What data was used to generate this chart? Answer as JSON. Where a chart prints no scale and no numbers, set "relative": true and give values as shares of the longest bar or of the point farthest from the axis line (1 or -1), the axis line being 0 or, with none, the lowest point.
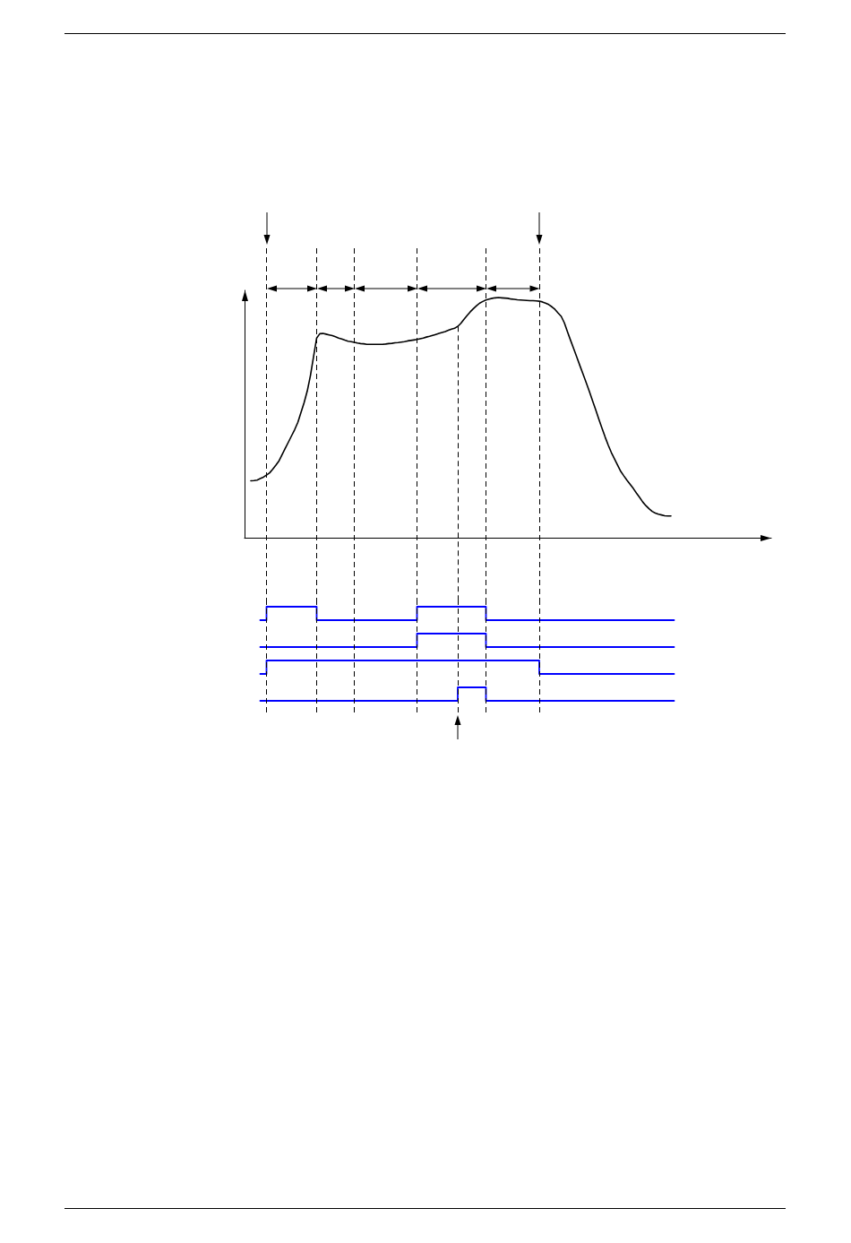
{
  "chart_data": [
    {
      "type": "line",
      "relative": true,
      "tick_labels": false,
      "categories": [
        null,
        null,
        null,
        null,
        null,
        null,
        null,
        null,
        null,
        null,
        null,
        null,
        null,
        null,
        null,
        null,
        null,
        null,
        null,
        null,
        null,
        null,
        null,
        null,
        null,
        null,
        null,
        null,
        null,
        null,
        null,
        null,
        null,
        null,
        null,
        null,
        null,
        null,
        null,
        null,
        null,
        null,
        null,
        null,
        null,
        null,
        null,
        null,
        null,
        null,
        null,
        null,
        null,
        null,
        null,
        null,
        null,
        null,
        null,
        null,
        null,
        null,
        null,
        null,
        null,
        null,
        null,
        null,
        null,
        null,
        null,
        null,
        null,
        null,
        null,
        null,
        null,
        null,
        null,
        null,
        null,
        null,
        null,
        null,
        null,
        null,
        null,
        null,
        null,
        null,
        null,
        null,
        null,
        null,
        null,
        null,
        null,
        null,
        null,
        null,
        null,
        null,
        null,
        null,
        null,
        null,
        null,
        null,
        null,
        null,
        null,
        null,
        null,
        null,
        null,
        null,
        null,
        null,
        null,
        null,
        null,
        null,
        null,
        null,
        null,
        null,
        null,
        null,
        null,
        null,
        null,
        null,
        null,
        null,
        null,
        null,
        null,
        null,
        null,
        null,
        null,
        null,
        null,
        null,
        null,
        null,
        null,
        null,
        null,
        null,
        null,
        null,
        null,
        null,
        null,
        null,
        null,
        null,
        null,
        null,
        null,
        null,
        null,
        null,
        null,
        null,
        null,
        null,
        null
      ],
      "color": "#000000",
      "values": [
        null,
        null,
        0.239,
        0.24,
        0.242,
        0.248,
        0.254,
        0.263,
        0.272,
        0.287,
        0.304,
        0.322,
        0.348,
        0.374,
        0.4,
        0.426,
        0.452,
        0.482,
        0.523,
        0.564,
        0.612,
        0.675,
        0.754,
        0.832,
        0.85,
        0.851,
        0.848,
        0.845,
        0.842,
        0.837,
        0.832,
        0.828,
        0.823,
        0.819,
        0.817,
        0.814,
        0.811,
        0.809,
        0.808,
        0.806,
        0.806,
        0.806,
        0.806,
        0.806,
        0.806,
        0.807,
        0.809,
        0.81,
        0.812,
        0.813,
        0.815,
        0.817,
        0.82,
        0.822,
        0.824,
        0.826,
        0.829,
        0.832,
        0.836,
        0.839,
        0.843,
        0.847,
        0.851,
        0.855,
        0.859,
        0.864,
        0.869,
        0.873,
        0.88,
        0.893,
        0.91,
        0.926,
        0.941,
        0.954,
        0.966,
        0.977,
        0.984,
        0.99,
        0.994,
        0.997,
        0.999,
        1,
        0.999,
        0.998,
        0.997,
        0.994,
        0.993,
        0.991,
        0.99,
        0.989,
        0.988,
        0.987,
        0.987,
        0.986,
        0.985,
        0.982,
        0.977,
        0.971,
        0.962,
        0.951,
        0.936,
        0.922,
        0.895,
        0.858,
        0.822,
        0.787,
        0.752,
        0.716,
        0.681,
        0.646,
        0.609,
        0.571,
        0.534,
        0.495,
        0.458,
        0.421,
        0.387,
        0.356,
        0.33,
        0.304,
        0.278,
        0.259,
        0.241,
        0.224,
        0.207,
        0.188,
        0.17,
        0.151,
        0.136,
        0.123,
        0.112,
        0.105,
        0.1,
        0.097,
        0.094,
        0.093,
        0.093,
        null,
        null,
        null,
        null,
        null,
        null,
        null,
        null,
        null,
        null,
        null,
        null,
        null,
        null,
        null,
        null,
        null,
        null,
        null,
        null,
        null,
        null,
        null,
        null,
        null,
        null,
        null,
        null,
        null,
        null,
        null,
        null
      ]
    },
    {
      "type": "step",
      "relative": true,
      "tick_labels": false,
      "categories": [
        null,
        null,
        null,
        null,
        null,
        null,
        null,
        null,
        null,
        null,
        null,
        null,
        null,
        null,
        null,
        null,
        null,
        null,
        null,
        null,
        null,
        null,
        null,
        null,
        null,
        null,
        null,
        null,
        null,
        null,
        null,
        null,
        null,
        null,
        null,
        null,
        null,
        null,
        null,
        null,
        null,
        null,
        null,
        null,
        null,
        null,
        null,
        null,
        null,
        null,
        null,
        null,
        null,
        null,
        null,
        null,
        null,
        null,
        null,
        null,
        null,
        null,
        null,
        null,
        null,
        null,
        null,
        null,
        null,
        null,
        null,
        null,
        null,
        null,
        null,
        null,
        null,
        null,
        null,
        null,
        null,
        null,
        null,
        null,
        null,
        null,
        null,
        null,
        null,
        null,
        null,
        null,
        null,
        null,
        null,
        null,
        null,
        null,
        null,
        null,
        null,
        null,
        null,
        null,
        null,
        null,
        null,
        null,
        null,
        null,
        null,
        null,
        null,
        null,
        null,
        null,
        null,
        null,
        null,
        null,
        null,
        null,
        null,
        null,
        null,
        null,
        null,
        null,
        null,
        null,
        null,
        null,
        null,
        null,
        null,
        null,
        null,
        null,
        null,
        null,
        null,
        null,
        null,
        null,
        null,
        null,
        null,
        null,
        null,
        null,
        null,
        null,
        null,
        null,
        null,
        null,
        null,
        null,
        null,
        null,
        null,
        null,
        null,
        null,
        null,
        null,
        null,
        null,
        null
      ],
      "color": "#0000ff",
      "values": [
        null,
        null,
        null,
        null,
        null,
        0,
        0,
        1,
        1,
        1,
        1,
        1,
        1,
        1,
        1,
        1,
        1,
        1,
        1,
        1,
        1,
        1,
        1,
        0,
        0,
        0,
        0,
        0,
        0,
        0,
        0,
        0,
        0,
        0,
        0,
        0,
        0,
        0,
        0,
        0,
        0,
        0,
        0,
        0,
        0,
        0,
        0,
        0,
        0,
        0,
        0,
        0,
        0,
        0,
        0,
        1,
        1,
        1,
        1,
        1,
        1,
        1,
        1,
        1,
        1,
        1,
        1,
        1,
        1,
        1,
        1,
        1,
        1,
        1,
        1,
        1,
        1,
        0,
        0,
        0,
        0,
        0,
        0,
        0,
        0,
        0,
        0,
        0,
        0,
        0,
        0,
        0,
        0,
        0,
        0,
        0,
        0,
        0,
        0,
        0,
        0,
        0,
        0,
        0,
        0,
        0,
        0,
        0,
        0,
        0,
        0,
        0,
        0,
        0,
        0,
        0,
        0,
        0,
        0,
        0,
        0,
        0,
        0,
        0,
        0,
        0,
        0,
        0,
        0,
        0,
        0,
        0,
        0,
        0,
        0,
        0,
        0,
        null,
        null,
        null,
        null,
        null,
        null,
        null,
        null,
        null,
        null,
        null,
        null,
        null,
        null,
        null,
        null,
        null,
        null,
        null,
        null,
        null,
        null,
        null,
        null,
        null,
        null,
        null,
        null,
        null,
        null,
        null,
        null
      ]
    },
    {
      "type": "step",
      "relative": true,
      "tick_labels": false,
      "categories": [
        null,
        null,
        null,
        null,
        null,
        null,
        null,
        null,
        null,
        null,
        null,
        null,
        null,
        null,
        null,
        null,
        null,
        null,
        null,
        null,
        null,
        null,
        null,
        null,
        null,
        null,
        null,
        null,
        null,
        null,
        null,
        null,
        null,
        null,
        null,
        null,
        null,
        null,
        null,
        null,
        null,
        null,
        null,
        null,
        null,
        null,
        null,
        null,
        null,
        null,
        null,
        null,
        null,
        null,
        null,
        null,
        null,
        null,
        null,
        null,
        null,
        null,
        null,
        null,
        null,
        null,
        null,
        null,
        null,
        null,
        null,
        null,
        null,
        null,
        null,
        null,
        null,
        null,
        null,
        null,
        null,
        null,
        null,
        null,
        null,
        null,
        null,
        null,
        null,
        null,
        null,
        null,
        null,
        null,
        null,
        null,
        null,
        null,
        null,
        null,
        null,
        null,
        null,
        null,
        null,
        null,
        null,
        null,
        null,
        null,
        null,
        null,
        null,
        null,
        null,
        null,
        null,
        null,
        null,
        null,
        null,
        null,
        null,
        null,
        null,
        null,
        null,
        null,
        null,
        null,
        null,
        null,
        null,
        null,
        null,
        null,
        null,
        null,
        null,
        null,
        null,
        null,
        null,
        null,
        null,
        null,
        null,
        null,
        null,
        null,
        null,
        null,
        null,
        null,
        null,
        null,
        null,
        null,
        null,
        null,
        null,
        null,
        null,
        null,
        null,
        null,
        null,
        null,
        null
      ],
      "color": "#0000ff",
      "values": [
        null,
        null,
        null,
        null,
        null,
        0,
        0,
        0,
        0,
        0,
        0,
        0,
        0,
        0,
        0,
        0,
        0,
        0,
        0,
        0,
        0,
        0,
        0,
        0,
        0,
        0,
        0,
        0,
        0,
        0,
        0,
        0,
        0,
        0,
        0,
        0,
        0,
        0,
        0,
        0,
        0,
        0,
        0,
        0,
        0,
        0,
        0,
        0,
        0,
        0,
        0,
        0,
        0,
        0,
        0,
        1,
        1,
        1,
        1,
        1,
        1,
        1,
        1,
        1,
        1,
        1,
        1,
        1,
        1,
        1,
        1,
        1,
        1,
        1,
        1,
        1,
        1,
        0,
        0,
        0,
        0,
        0,
        0,
        0,
        0,
        0,
        0,
        0,
        0,
        0,
        0,
        0,
        0,
        0,
        0,
        0,
        0,
        0,
        0,
        0,
        0,
        0,
        0,
        0,
        0,
        0,
        0,
        0,
        0,
        0,
        0,
        0,
        0,
        0,
        0,
        0,
        0,
        0,
        0,
        0,
        0,
        0,
        0,
        0,
        0,
        0,
        0,
        0,
        0,
        0,
        0,
        0,
        0,
        0,
        0,
        0,
        0,
        null,
        null,
        null,
        null,
        null,
        null,
        null,
        null,
        null,
        null,
        null,
        null,
        null,
        null,
        null,
        null,
        null,
        null,
        null,
        null,
        null,
        null,
        null,
        null,
        null,
        null,
        null,
        null,
        null,
        null,
        null,
        null
      ]
    },
    {
      "type": "step",
      "relative": true,
      "tick_labels": false,
      "categories": [
        null,
        null,
        null,
        null,
        null,
        null,
        null,
        null,
        null,
        null,
        null,
        null,
        null,
        null,
        null,
        null,
        null,
        null,
        null,
        null,
        null,
        null,
        null,
        null,
        null,
        null,
        null,
        null,
        null,
        null,
        null,
        null,
        null,
        null,
        null,
        null,
        null,
        null,
        null,
        null,
        null,
        null,
        null,
        null,
        null,
        null,
        null,
        null,
        null,
        null,
        null,
        null,
        null,
        null,
        null,
        null,
        null,
        null,
        null,
        null,
        null,
        null,
        null,
        null,
        null,
        null,
        null,
        null,
        null,
        null,
        null,
        null,
        null,
        null,
        null,
        null,
        null,
        null,
        null,
        null,
        null,
        null,
        null,
        null,
        null,
        null,
        null,
        null,
        null,
        null,
        null,
        null,
        null,
        null,
        null,
        null,
        null,
        null,
        null,
        null,
        null,
        null,
        null,
        null,
        null,
        null,
        null,
        null,
        null,
        null,
        null,
        null,
        null,
        null,
        null,
        null,
        null,
        null,
        null,
        null,
        null,
        null,
        null,
        null,
        null,
        null,
        null,
        null,
        null,
        null,
        null,
        null,
        null,
        null,
        null,
        null,
        null,
        null,
        null,
        null,
        null,
        null,
        null,
        null,
        null,
        null,
        null,
        null,
        null,
        null,
        null,
        null,
        null,
        null,
        null,
        null,
        null,
        null,
        null,
        null,
        null,
        null,
        null,
        null,
        null,
        null,
        null,
        null,
        null
      ],
      "color": "#0000ff",
      "values": [
        null,
        null,
        null,
        null,
        null,
        0,
        0,
        1,
        1,
        1,
        1,
        1,
        1,
        1,
        1,
        1,
        1,
        1,
        1,
        1,
        1,
        1,
        1,
        1,
        1,
        1,
        1,
        1,
        1,
        1,
        1,
        1,
        1,
        1,
        1,
        1,
        1,
        1,
        1,
        1,
        1,
        1,
        1,
        1,
        1,
        1,
        1,
        1,
        1,
        1,
        1,
        1,
        1,
        1,
        1,
        1,
        1,
        1,
        1,
        1,
        1,
        1,
        1,
        1,
        1,
        1,
        1,
        1,
        1,
        1,
        1,
        1,
        1,
        1,
        1,
        1,
        1,
        1,
        1,
        1,
        1,
        1,
        1,
        1,
        1,
        1,
        1,
        1,
        1,
        1,
        1,
        1,
        1,
        1,
        0,
        0,
        0,
        0,
        0,
        0,
        0,
        0,
        0,
        0,
        0,
        0,
        0,
        0,
        0,
        0,
        0,
        0,
        0,
        0,
        0,
        0,
        0,
        0,
        0,
        0,
        0,
        0,
        0,
        0,
        0,
        0,
        0,
        0,
        0,
        0,
        0,
        0,
        0,
        0,
        0,
        0,
        0,
        null,
        null,
        null,
        null,
        null,
        null,
        null,
        null,
        null,
        null,
        null,
        null,
        null,
        null,
        null,
        null,
        null,
        null,
        null,
        null,
        null,
        null,
        null,
        null,
        null,
        null,
        null,
        null,
        null,
        null,
        null,
        null
      ]
    },
    {
      "type": "step",
      "relative": true,
      "tick_labels": false,
      "categories": [
        null,
        null,
        null,
        null,
        null,
        null,
        null,
        null,
        null,
        null,
        null,
        null,
        null,
        null,
        null,
        null,
        null,
        null,
        null,
        null,
        null,
        null,
        null,
        null,
        null,
        null,
        null,
        null,
        null,
        null,
        null,
        null,
        null,
        null,
        null,
        null,
        null,
        null,
        null,
        null,
        null,
        null,
        null,
        null,
        null,
        null,
        null,
        null,
        null,
        null,
        null,
        null,
        null,
        null,
        null,
        null,
        null,
        null,
        null,
        null,
        null,
        null,
        null,
        null,
        null,
        null,
        null,
        null,
        null,
        null,
        null,
        null,
        null,
        null,
        null,
        null,
        null,
        null,
        null,
        null,
        null,
        null,
        null,
        null,
        null,
        null,
        null,
        null,
        null,
        null,
        null,
        null,
        null,
        null,
        null,
        null,
        null,
        null,
        null,
        null,
        null,
        null,
        null,
        null,
        null,
        null,
        null,
        null,
        null,
        null,
        null,
        null,
        null,
        null,
        null,
        null,
        null,
        null,
        null,
        null,
        null,
        null,
        null,
        null,
        null,
        null,
        null,
        null,
        null,
        null,
        null,
        null,
        null,
        null,
        null,
        null,
        null,
        null,
        null,
        null,
        null,
        null,
        null,
        null,
        null,
        null,
        null,
        null,
        null,
        null,
        null,
        null,
        null,
        null,
        null,
        null,
        null,
        null,
        null,
        null,
        null,
        null,
        null,
        null,
        null,
        null,
        null,
        null,
        null
      ],
      "color": "#0000ff",
      "values": [
        null,
        null,
        null,
        null,
        null,
        0,
        0,
        0,
        0,
        0,
        0,
        0,
        0,
        0,
        0,
        0,
        0,
        0,
        0,
        0,
        0,
        0,
        0,
        0,
        0,
        0,
        0,
        0,
        0,
        0,
        0,
        0,
        0,
        0,
        0,
        0,
        0,
        0,
        0,
        0,
        0,
        0,
        0,
        0,
        0,
        0,
        0,
        0,
        0,
        0,
        0,
        0,
        0,
        0,
        0,
        0,
        0,
        0,
        0,
        0,
        0,
        0,
        0,
        0,
        0,
        0,
        0,
        0,
        1,
        1,
        1,
        1,
        1,
        1,
        1,
        1,
        1,
        0,
        0,
        0,
        0,
        0,
        0,
        0,
        0,
        0,
        0,
        0,
        0,
        0,
        0,
        0,
        0,
        0,
        0,
        0,
        0,
        0,
        0,
        0,
        0,
        0,
        0,
        0,
        0,
        0,
        0,
        0,
        0,
        0,
        0,
        0,
        0,
        0,
        0,
        0,
        0,
        0,
        0,
        0,
        0,
        0,
        0,
        0,
        0,
        0,
        0,
        0,
        0,
        0,
        0,
        0,
        0,
        0,
        0,
        0,
        0,
        null,
        null,
        null,
        null,
        null,
        null,
        null,
        null,
        null,
        null,
        null,
        null,
        null,
        null,
        null,
        null,
        null,
        null,
        null,
        null,
        null,
        null,
        null,
        null,
        null,
        null,
        null,
        null,
        null,
        null,
        null,
        null
      ]
    }
  ]
}
